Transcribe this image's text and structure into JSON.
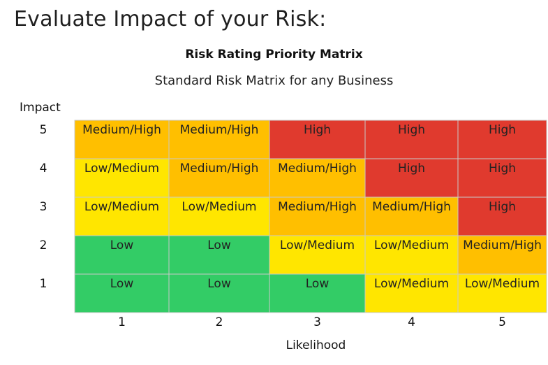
{
  "page": {
    "title": "Evaluate Impact of your Risk:"
  },
  "chart_data": {
    "type": "heatmap",
    "title": "Risk Rating Priority Matrix",
    "subtitle": "Standard Risk Matrix for any Business",
    "xlabel": "Likelihood",
    "ylabel": "Impact",
    "x_ticks": [
      "1",
      "2",
      "3",
      "4",
      "5"
    ],
    "y_ticks": [
      "5",
      "4",
      "3",
      "2",
      "1"
    ],
    "rows": [
      {
        "impact": 5,
        "cells": [
          "Medium/High",
          "Medium/High",
          "High",
          "High",
          "High"
        ]
      },
      {
        "impact": 4,
        "cells": [
          "Low/Medium",
          "Medium/High",
          "Medium/High",
          "High",
          "High"
        ]
      },
      {
        "impact": 3,
        "cells": [
          "Low/Medium",
          "Low/Medium",
          "Medium/High",
          "Medium/High",
          "High"
        ]
      },
      {
        "impact": 2,
        "cells": [
          "Low",
          "Low",
          "Low/Medium",
          "Low/Medium",
          "Medium/High"
        ]
      },
      {
        "impact": 1,
        "cells": [
          "Low",
          "Low",
          "Low",
          "Low/Medium",
          "Low/Medium"
        ]
      }
    ],
    "colors": {
      "Low": "#33cc66",
      "Low/Medium": "#ffe600",
      "Medium/High": "#ffbf00",
      "High": "#e03a2e"
    },
    "grid": true
  }
}
